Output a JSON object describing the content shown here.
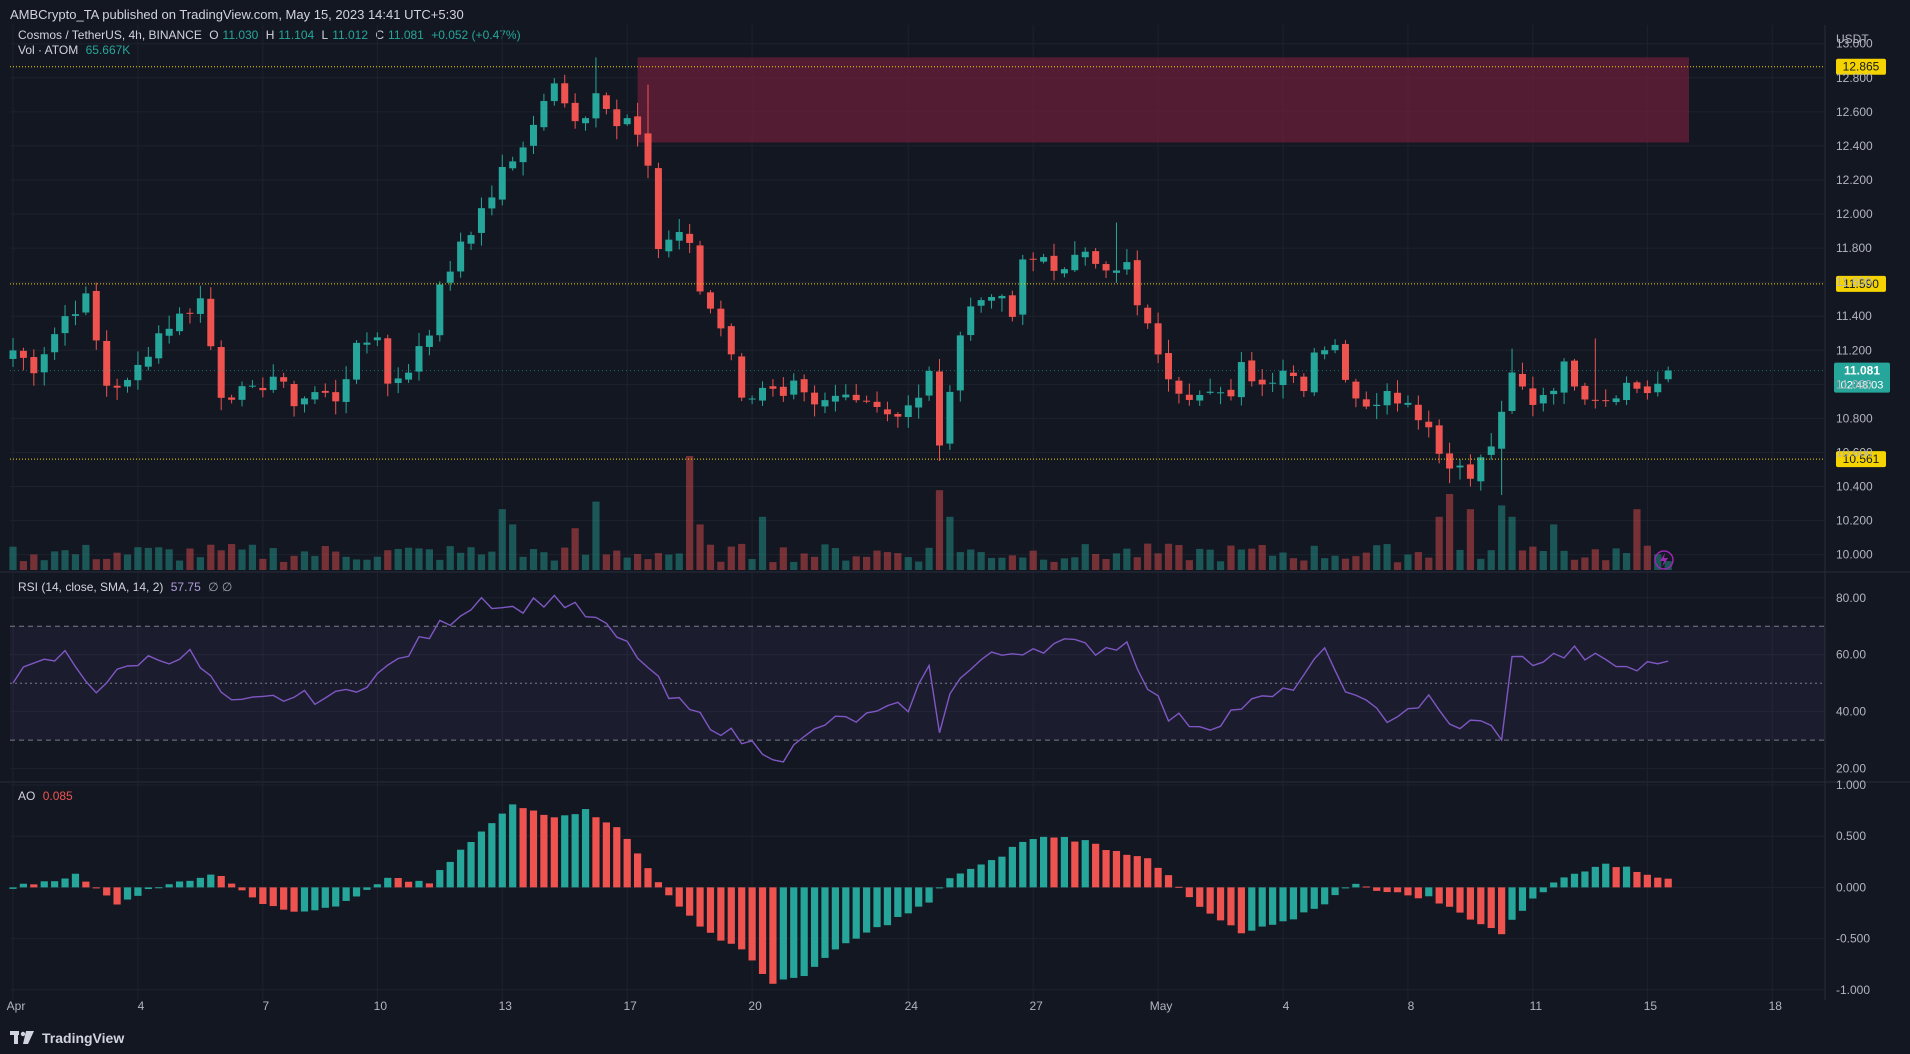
{
  "header": {
    "publisher": "AMBCrypto_TA published on TradingView.com, May 15, 2023 14:41 UTC+5:30",
    "currency": "USDT"
  },
  "legend": {
    "symbol": "Cosmos / TetherUS, 4h, BINANCE",
    "o_label": "O",
    "o_val": "11.030",
    "h_label": "H",
    "h_val": "11.104",
    "l_label": "L",
    "l_val": "11.012",
    "c_label": "C",
    "c_val": "11.081",
    "change": "+0.052 (+0.47%)",
    "vol_label": "Vol · ATOM",
    "vol_val": "65.667K",
    "rsi_label": "RSI (14, close, SMA, 14, 2)",
    "rsi_val": "57.75",
    "rsi_extra": "∅ ∅",
    "ao_label": "AO",
    "ao_val": "0.085"
  },
  "price_badges": {
    "level_high": "12.865",
    "level_mid": "11.590",
    "level_low": "10.561",
    "last_price": "11.081",
    "countdown": "02:48:03"
  },
  "colors": {
    "bull": "#26a69a",
    "bear": "#ef5350",
    "level_line": "#f5d300",
    "rsi_line": "#7e57c2",
    "zone": "#6b1f3a",
    "badge_bg": "#f5d300",
    "last_badge": "#26a69a"
  },
  "footer": {
    "brand": "TradingView"
  },
  "chart_data": {
    "type": "candlestick",
    "title": "Cosmos / TetherUS, 4h, BINANCE",
    "x_ticks": [
      "Apr",
      "4",
      "7",
      "10",
      "13",
      "17",
      "20",
      "24",
      "27",
      "May",
      "4",
      "8",
      "11",
      "15",
      "18"
    ],
    "price_axis": {
      "ticks": [
        "13.000",
        "12.800",
        "12.600",
        "12.400",
        "12.200",
        "12.000",
        "11.800",
        "11.600",
        "11.400",
        "11.200",
        "11.000",
        "10.800",
        "10.600",
        "10.400",
        "10.200",
        "10.000"
      ],
      "range": [
        9.91,
        13.11
      ]
    },
    "horizontal_levels": [
      12.865,
      11.59,
      10.561
    ],
    "supply_zone": {
      "low": 12.42,
      "high": 12.92,
      "from": "Apr 17",
      "to": "May 13"
    },
    "close_anchors": [
      [
        0,
        11.2
      ],
      [
        2,
        11.1
      ],
      [
        5,
        11.4
      ],
      [
        7,
        11.5
      ],
      [
        9,
        11.0
      ],
      [
        11,
        11.0
      ],
      [
        14,
        11.3
      ],
      [
        16,
        11.4
      ],
      [
        18,
        11.5
      ],
      [
        20,
        10.95
      ],
      [
        23,
        10.95
      ],
      [
        25,
        11.05
      ],
      [
        27,
        10.9
      ],
      [
        29,
        10.95
      ],
      [
        31,
        10.92
      ],
      [
        33,
        11.2
      ],
      [
        35,
        11.3
      ],
      [
        36,
        11.0
      ],
      [
        38,
        11.1
      ],
      [
        40,
        11.3
      ],
      [
        41,
        11.6
      ],
      [
        43,
        11.8
      ],
      [
        44,
        11.9
      ],
      [
        46,
        12.1
      ],
      [
        47,
        12.3
      ],
      [
        48,
        12.3
      ],
      [
        50,
        12.5
      ],
      [
        52,
        12.8
      ],
      [
        54,
        12.55
      ],
      [
        55,
        12.6
      ],
      [
        56,
        12.75
      ],
      [
        58,
        12.5
      ],
      [
        59,
        12.55
      ],
      [
        61,
        12.3
      ],
      [
        62,
        11.8
      ],
      [
        64,
        11.9
      ],
      [
        65,
        11.8
      ],
      [
        66,
        11.55
      ],
      [
        68,
        11.35
      ],
      [
        69,
        11.2
      ],
      [
        70,
        10.9
      ],
      [
        72,
        11.0
      ],
      [
        74,
        10.9
      ],
      [
        75,
        10.98
      ],
      [
        77,
        10.85
      ],
      [
        79,
        10.92
      ],
      [
        81,
        10.95
      ],
      [
        83,
        10.88
      ],
      [
        85,
        10.82
      ],
      [
        87,
        10.9
      ],
      [
        88,
        11.1
      ],
      [
        89,
        10.6
      ],
      [
        90,
        11.0
      ],
      [
        91,
        11.3
      ],
      [
        92,
        11.45
      ],
      [
        94,
        11.55
      ],
      [
        96,
        11.4
      ],
      [
        97,
        11.7
      ],
      [
        99,
        11.75
      ],
      [
        101,
        11.65
      ],
      [
        103,
        11.8
      ],
      [
        105,
        11.7
      ],
      [
        106,
        11.65
      ],
      [
        107,
        11.7
      ],
      [
        108,
        11.45
      ],
      [
        110,
        11.2
      ],
      [
        111,
        11.0
      ],
      [
        113,
        10.95
      ],
      [
        115,
        11.0
      ],
      [
        117,
        10.9
      ],
      [
        118,
        11.1
      ],
      [
        120,
        11.0
      ],
      [
        122,
        11.1
      ],
      [
        124,
        11.0
      ],
      [
        125,
        11.2
      ],
      [
        127,
        11.25
      ],
      [
        128,
        11.0
      ],
      [
        130,
        10.9
      ],
      [
        132,
        10.95
      ],
      [
        134,
        10.9
      ],
      [
        136,
        10.75
      ],
      [
        137,
        10.6
      ],
      [
        138,
        10.55
      ],
      [
        140,
        10.45
      ],
      [
        142,
        10.65
      ],
      [
        143,
        10.8
      ],
      [
        144,
        11.05
      ],
      [
        146,
        10.9
      ],
      [
        148,
        11.0
      ],
      [
        149,
        11.1
      ],
      [
        151,
        10.95
      ],
      [
        153,
        10.92
      ],
      [
        155,
        11.0
      ],
      [
        157,
        10.96
      ],
      [
        158,
        11.0
      ],
      [
        159,
        11.081
      ]
    ],
    "rsi": {
      "levels": [
        70,
        50,
        30
      ],
      "range": [
        16,
        88
      ],
      "ticks": [
        "80.00",
        "60.00",
        "40.00",
        "20.00"
      ],
      "anchors": [
        [
          0,
          52
        ],
        [
          5,
          60
        ],
        [
          8,
          48
        ],
        [
          12,
          58
        ],
        [
          17,
          60
        ],
        [
          21,
          42
        ],
        [
          26,
          45
        ],
        [
          31,
          45
        ],
        [
          36,
          55
        ],
        [
          41,
          70
        ],
        [
          45,
          80
        ],
        [
          48,
          76
        ],
        [
          52,
          80
        ],
        [
          56,
          72
        ],
        [
          60,
          60
        ],
        [
          63,
          45
        ],
        [
          66,
          38
        ],
        [
          70,
          30
        ],
        [
          74,
          24
        ],
        [
          78,
          36
        ],
        [
          82,
          38
        ],
        [
          86,
          42
        ],
        [
          88,
          55
        ],
        [
          89,
          34
        ],
        [
          90,
          48
        ],
        [
          93,
          58
        ],
        [
          97,
          62
        ],
        [
          101,
          64
        ],
        [
          104,
          62
        ],
        [
          107,
          64
        ],
        [
          109,
          50
        ],
        [
          111,
          38
        ],
        [
          115,
          35
        ],
        [
          118,
          42
        ],
        [
          122,
          46
        ],
        [
          126,
          60
        ],
        [
          129,
          44
        ],
        [
          132,
          38
        ],
        [
          136,
          44
        ],
        [
          138,
          35
        ],
        [
          141,
          36
        ],
        [
          143,
          32
        ],
        [
          144,
          58
        ],
        [
          147,
          58
        ],
        [
          150,
          61
        ],
        [
          153,
          57
        ],
        [
          156,
          55
        ],
        [
          159,
          57.75
        ]
      ]
    },
    "ao": {
      "range": [
        -1.1,
        1.0
      ],
      "ticks": [
        "1.000",
        "0.500",
        "0.000",
        "-0.500",
        "-1.000"
      ],
      "anchors": [
        [
          0,
          0.0
        ],
        [
          6,
          0.12
        ],
        [
          10,
          -0.15
        ],
        [
          15,
          0.05
        ],
        [
          20,
          0.12
        ],
        [
          24,
          -0.15
        ],
        [
          28,
          -0.25
        ],
        [
          32,
          -0.15
        ],
        [
          36,
          0.08
        ],
        [
          40,
          0.05
        ],
        [
          44,
          0.45
        ],
        [
          48,
          0.8
        ],
        [
          52,
          0.7
        ],
        [
          55,
          0.75
        ],
        [
          58,
          0.6
        ],
        [
          62,
          0.05
        ],
        [
          66,
          -0.4
        ],
        [
          70,
          -0.6
        ],
        [
          73,
          -0.95
        ],
        [
          76,
          -0.85
        ],
        [
          80,
          -0.55
        ],
        [
          84,
          -0.35
        ],
        [
          88,
          -0.15
        ],
        [
          90,
          0.1
        ],
        [
          94,
          0.25
        ],
        [
          97,
          0.45
        ],
        [
          100,
          0.5
        ],
        [
          103,
          0.45
        ],
        [
          106,
          0.35
        ],
        [
          109,
          0.3
        ],
        [
          111,
          0.1
        ],
        [
          114,
          -0.2
        ],
        [
          118,
          -0.45
        ],
        [
          122,
          -0.35
        ],
        [
          126,
          -0.15
        ],
        [
          129,
          0.05
        ],
        [
          132,
          -0.05
        ],
        [
          136,
          -0.1
        ],
        [
          140,
          -0.3
        ],
        [
          143,
          -0.45
        ],
        [
          146,
          -0.1
        ],
        [
          149,
          0.1
        ],
        [
          153,
          0.25
        ],
        [
          156,
          0.15
        ],
        [
          159,
          0.085
        ]
      ]
    }
  }
}
